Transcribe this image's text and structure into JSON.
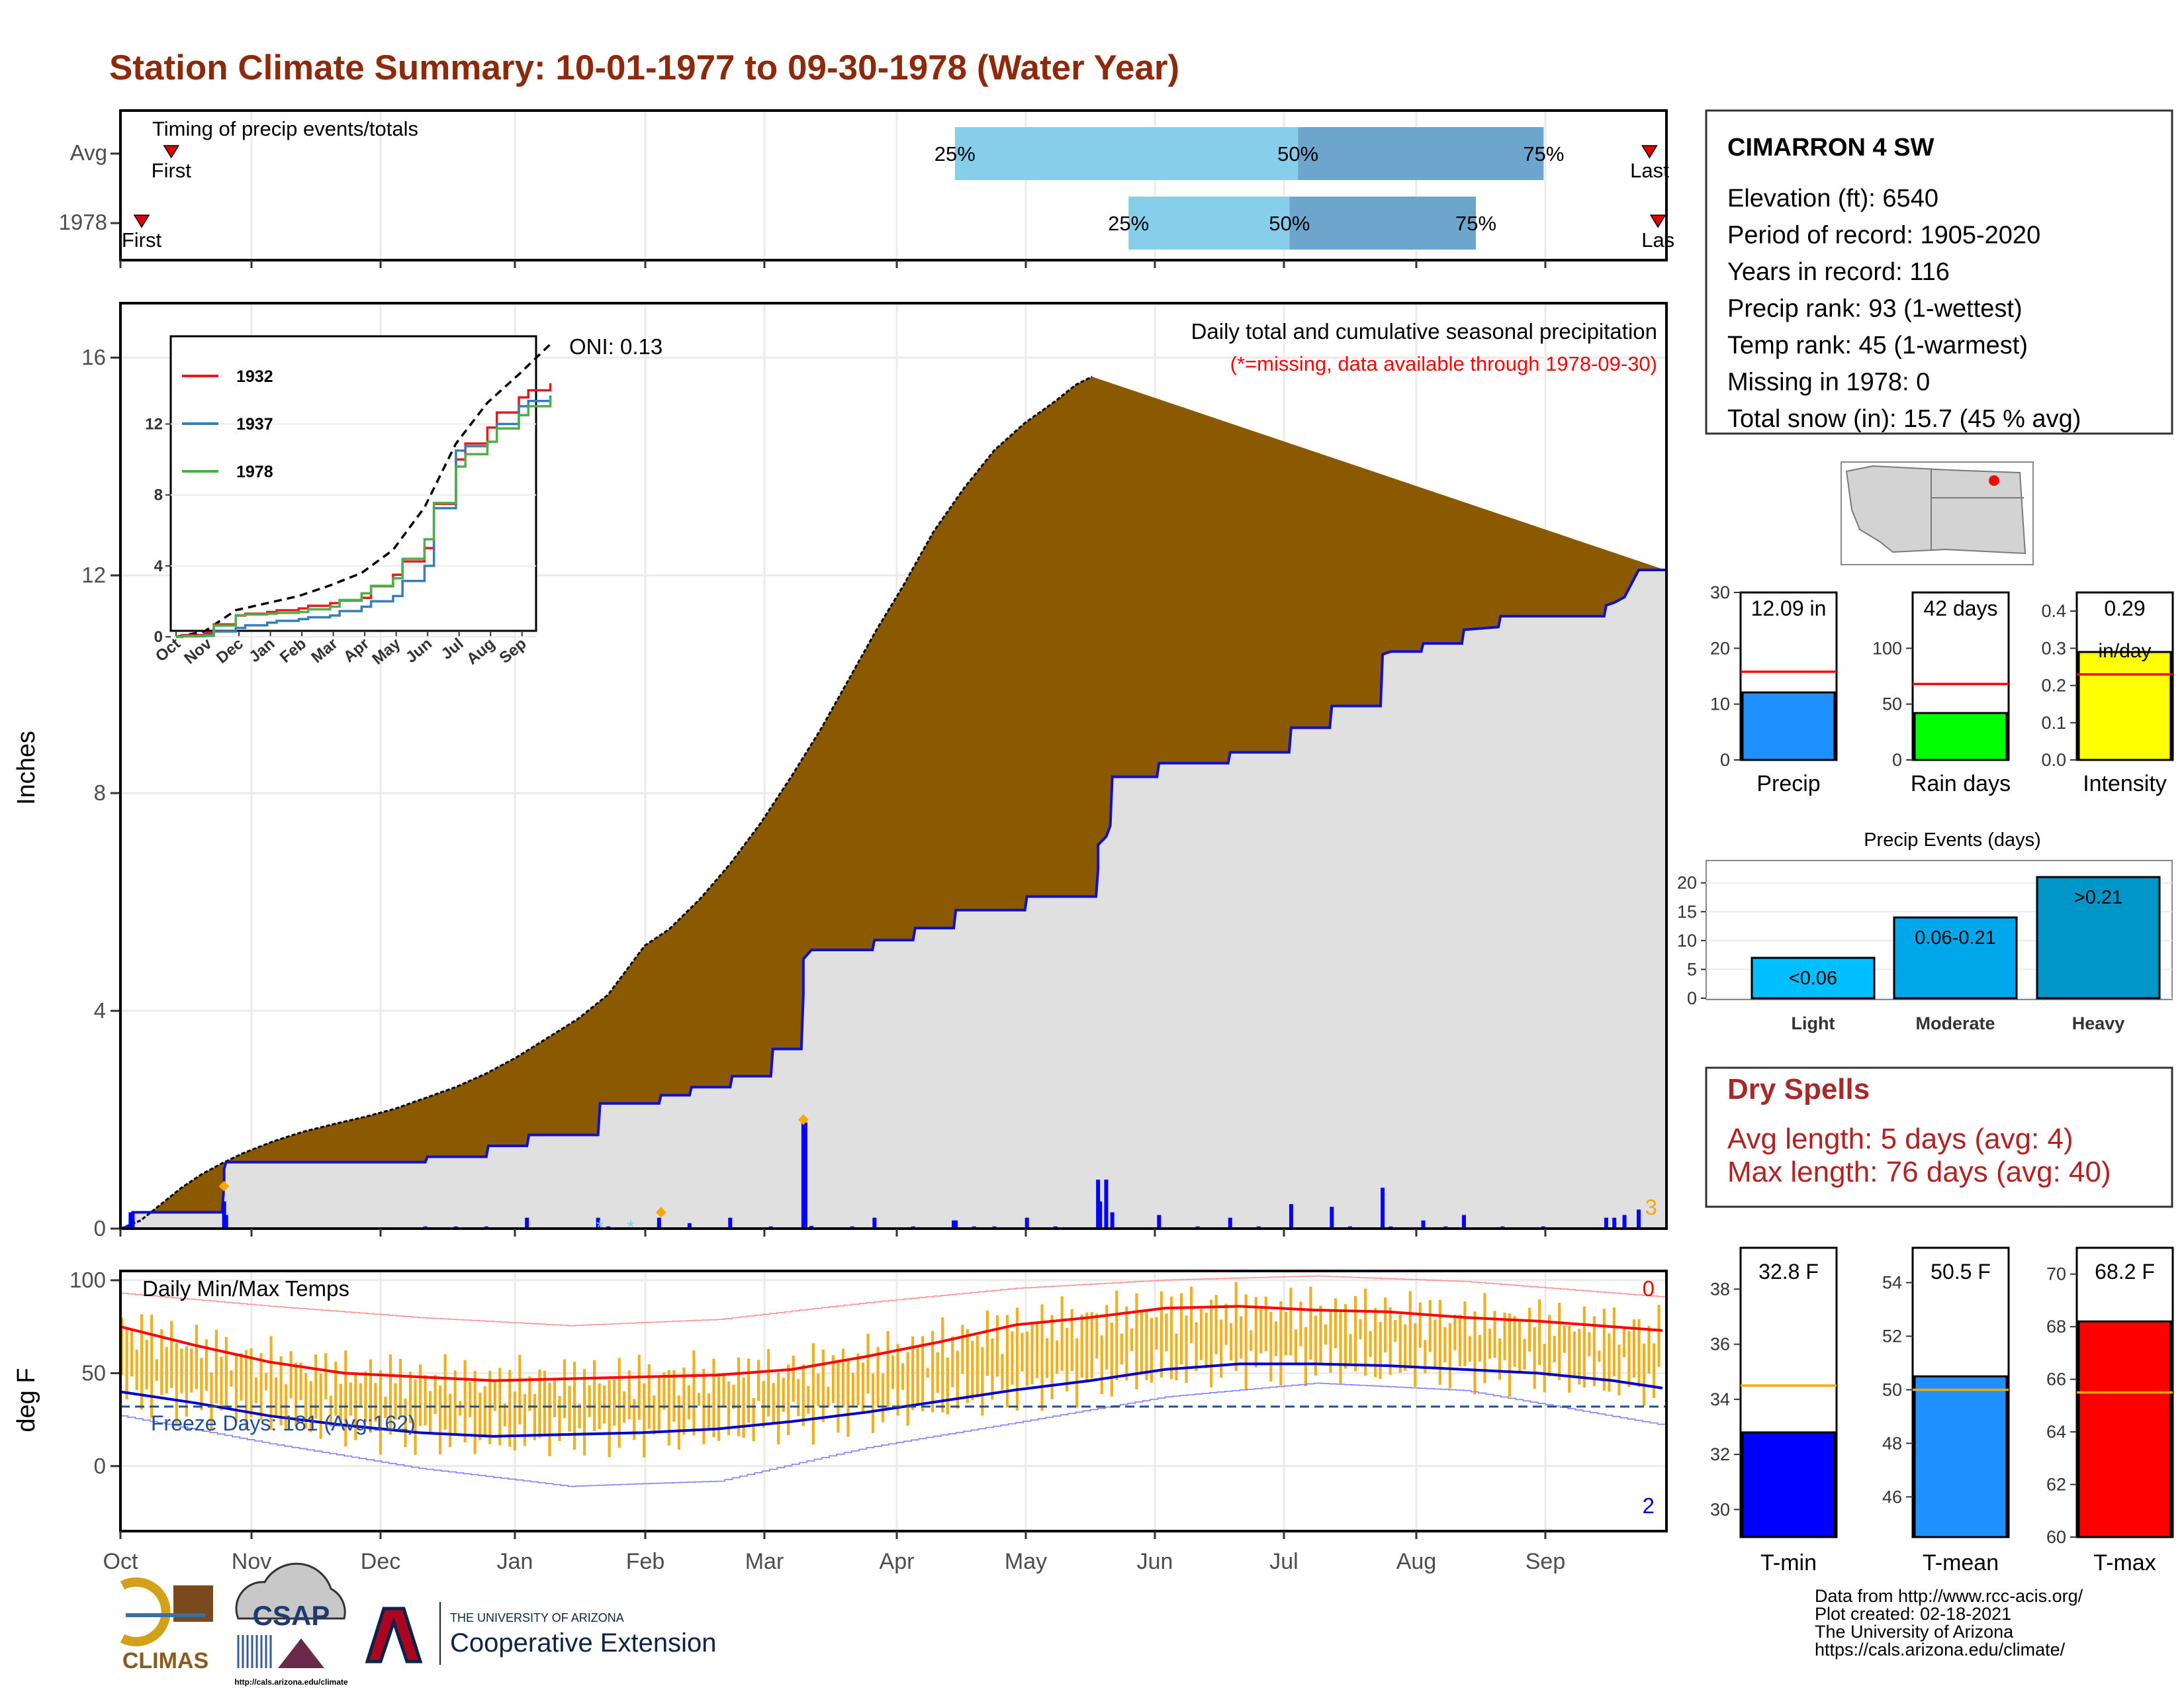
{
  "title": "Station Climate Summary: 10-01-1977 to 09-30-1978 (Water Year)",
  "months": [
    "Oct",
    "Nov",
    "Dec",
    "Jan",
    "Feb",
    "Mar",
    "Apr",
    "May",
    "Jun",
    "Jul",
    "Aug",
    "Sep"
  ],
  "timing": {
    "label": "Timing of precip events/totals",
    "rows": [
      {
        "name": "Avg",
        "first_day": 12,
        "q25": 197,
        "q50": 278,
        "q75": 336,
        "last_day": 361,
        "first_label": "First",
        "last_label": "Last"
      },
      {
        "name": "1978",
        "first_day": 5,
        "q25": 238,
        "q50": 276,
        "q75": 320,
        "last_day": 363,
        "first_label": "First",
        "last_label": "Las"
      }
    ],
    "pct_labels": [
      "25%",
      "50%",
      "75%"
    ]
  },
  "precip": {
    "ylabel": "Inches",
    "yticks": [
      0,
      4,
      8,
      12,
      16
    ],
    "ylim": [
      0,
      17
    ],
    "title": "Daily total and cumulative seasonal precipitation",
    "note": "(*=missing, data available through 1978-09-30)",
    "oni": "ONI: 0.13",
    "corner_count": "3",
    "avg_cumulative": [
      [
        0,
        0
      ],
      [
        10,
        0.15
      ],
      [
        20,
        0.45
      ],
      [
        30,
        0.75
      ],
      [
        40,
        1.0
      ],
      [
        50,
        1.2
      ],
      [
        60,
        1.38
      ],
      [
        75,
        1.6
      ],
      [
        90,
        1.78
      ],
      [
        105,
        1.92
      ],
      [
        120,
        2.05
      ],
      [
        135,
        2.2
      ],
      [
        150,
        2.4
      ],
      [
        165,
        2.6
      ],
      [
        180,
        2.85
      ],
      [
        195,
        3.15
      ],
      [
        210,
        3.5
      ],
      [
        225,
        3.85
      ],
      [
        240,
        4.3
      ],
      [
        250,
        4.8
      ],
      [
        258,
        5.2
      ],
      [
        270,
        5.5
      ],
      [
        285,
        6.05
      ],
      [
        300,
        6.7
      ],
      [
        315,
        7.45
      ],
      [
        330,
        8.3
      ],
      [
        345,
        9.2
      ],
      [
        360,
        10.2
      ],
      [
        372,
        11.0
      ],
      [
        385,
        11.8
      ],
      [
        400,
        12.8
      ],
      [
        415,
        13.6
      ],
      [
        430,
        14.3
      ],
      [
        445,
        14.8
      ],
      [
        460,
        15.2
      ],
      [
        470,
        15.5
      ],
      [
        478,
        15.65
      ]
    ],
    "season_cumulative": [
      [
        0,
        0
      ],
      [
        5,
        0.05
      ],
      [
        6,
        0.3
      ],
      [
        50,
        0.3
      ],
      [
        51,
        0.8
      ],
      [
        51,
        1.1
      ],
      [
        52,
        1.22
      ],
      [
        150,
        1.22
      ],
      [
        151,
        1.32
      ],
      [
        180,
        1.32
      ],
      [
        181,
        1.52
      ],
      [
        200,
        1.52
      ],
      [
        201,
        1.72
      ],
      [
        235,
        1.72
      ],
      [
        236,
        2.3
      ],
      [
        265,
        2.3
      ],
      [
        266,
        2.45
      ],
      [
        280,
        2.45
      ],
      [
        281,
        2.6
      ],
      [
        300,
        2.6
      ],
      [
        301,
        2.8
      ],
      [
        320,
        2.8
      ],
      [
        321,
        3.3
      ],
      [
        335,
        3.3
      ],
      [
        336,
        4.3
      ],
      [
        336,
        4.95
      ],
      [
        340,
        5.12
      ],
      [
        370,
        5.12
      ],
      [
        371,
        5.3
      ],
      [
        390,
        5.3
      ],
      [
        391,
        5.52
      ],
      [
        410,
        5.52
      ],
      [
        411,
        5.85
      ],
      [
        445,
        5.85
      ],
      [
        446,
        6.1
      ],
      [
        480,
        6.1
      ],
      [
        481,
        6.6
      ],
      [
        481,
        7.05
      ],
      [
        485,
        7.2
      ],
      [
        487,
        7.4
      ],
      [
        488,
        8.3
      ],
      [
        510,
        8.3
      ],
      [
        511,
        8.55
      ],
      [
        545,
        8.55
      ],
      [
        546,
        8.75
      ],
      [
        575,
        8.75
      ],
      [
        576,
        9.2
      ],
      [
        595,
        9.2
      ],
      [
        596,
        9.6
      ],
      [
        620,
        9.6
      ],
      [
        621,
        10.55
      ],
      [
        625,
        10.6
      ],
      [
        640,
        10.6
      ],
      [
        641,
        10.75
      ],
      [
        660,
        10.75
      ],
      [
        661,
        11.0
      ],
      [
        678,
        11.05
      ],
      [
        679,
        11.25
      ],
      [
        730,
        11.25
      ],
      [
        731,
        11.45
      ],
      [
        735,
        11.5
      ],
      [
        740,
        11.6
      ],
      [
        747,
        12.1
      ],
      [
        760,
        12.1
      ]
    ],
    "daily_precip": [
      [
        5,
        0.3
      ],
      [
        6,
        0.3
      ],
      [
        51,
        0.5
      ],
      [
        52,
        0.25
      ],
      [
        150,
        0.04
      ],
      [
        165,
        0.04
      ],
      [
        180,
        0.04
      ],
      [
        200,
        0.2
      ],
      [
        235,
        0.2
      ],
      [
        240,
        0.04
      ],
      [
        265,
        0.2
      ],
      [
        280,
        0.1
      ],
      [
        300,
        0.2
      ],
      [
        320,
        0.04
      ],
      [
        336,
        1.95
      ],
      [
        337,
        1.95
      ],
      [
        340,
        0.05
      ],
      [
        360,
        0.04
      ],
      [
        371,
        0.2
      ],
      [
        390,
        0.04
      ],
      [
        410,
        0.15
      ],
      [
        411,
        0.15
      ],
      [
        420,
        0.04
      ],
      [
        430,
        0.04
      ],
      [
        446,
        0.2
      ],
      [
        460,
        0.04
      ],
      [
        481,
        0.9
      ],
      [
        482,
        0.5
      ],
      [
        485,
        0.9
      ],
      [
        488,
        0.3
      ],
      [
        511,
        0.25
      ],
      [
        530,
        0.04
      ],
      [
        546,
        0.2
      ],
      [
        560,
        0.04
      ],
      [
        576,
        0.45
      ],
      [
        596,
        0.4
      ],
      [
        605,
        0.04
      ],
      [
        621,
        0.75
      ],
      [
        625,
        0.04
      ],
      [
        641,
        0.15
      ],
      [
        652,
        0.04
      ],
      [
        661,
        0.25
      ],
      [
        680,
        0.04
      ],
      [
        700,
        0.04
      ],
      [
        731,
        0.2
      ],
      [
        735,
        0.2
      ],
      [
        740,
        0.25
      ],
      [
        747,
        0.35
      ]
    ],
    "snow_marks": [
      [
        236,
        0.04
      ],
      [
        251,
        0.04
      ]
    ],
    "orange_marks": [
      [
        51,
        0.78
      ],
      [
        266,
        0.3
      ],
      [
        336,
        2.0
      ]
    ]
  },
  "inset": {
    "yticks": [
      0,
      4,
      8,
      12
    ],
    "months": [
      "Oct",
      "Nov",
      "Dec",
      "Jan",
      "Feb",
      "Mar",
      "Apr",
      "May",
      "Jun",
      "Jul",
      "Aug",
      "Sep"
    ],
    "series": [
      {
        "name": "1932",
        "color": "#e41a1c",
        "values": [
          0.2,
          1.2,
          1.4,
          1.6,
          1.9,
          2.2,
          3.5,
          5.0,
          10.0,
          11.8,
          13.5,
          14.3
        ]
      },
      {
        "name": "1937",
        "color": "#377eb8",
        "values": [
          0.1,
          0.5,
          0.8,
          1.0,
          1.2,
          1.7,
          2.3,
          4.0,
          10.5,
          11.0,
          13.0,
          13.6
        ]
      },
      {
        "name": "1978",
        "color": "#4daf4a",
        "values": [
          0.05,
          1.22,
          1.3,
          1.4,
          1.7,
          2.45,
          3.3,
          5.5,
          9.6,
          11.0,
          12.5,
          13.5
        ]
      }
    ],
    "avg_values": [
      0.3,
      1.5,
      1.9,
      2.3,
      2.9,
      3.6,
      4.9,
      7.3,
      10.9,
      13.2,
      14.8,
      16.5
    ]
  },
  "temps": {
    "label": "Daily Min/Max Temps",
    "ylabel": "deg F",
    "yticks": [
      0,
      50,
      100
    ],
    "ylim": [
      -35,
      105
    ],
    "freeze_label": "Freeze Days: 181 (Avg:162)",
    "freeze_line": 32,
    "count_top": "0",
    "count_bottom": "2",
    "avg_max": [
      [
        0,
        75
      ],
      [
        30,
        65
      ],
      [
        60,
        56
      ],
      [
        90,
        50
      ],
      [
        120,
        48
      ],
      [
        150,
        46
      ],
      [
        180,
        47
      ],
      [
        210,
        48
      ],
      [
        240,
        49
      ],
      [
        270,
        52
      ],
      [
        300,
        59
      ],
      [
        330,
        67
      ],
      [
        360,
        76
      ],
      [
        390,
        80
      ],
      [
        420,
        85
      ],
      [
        450,
        86
      ],
      [
        480,
        84
      ],
      [
        510,
        83
      ],
      [
        540,
        80
      ],
      [
        570,
        78
      ],
      [
        600,
        75
      ],
      [
        620,
        73
      ]
    ],
    "avg_min": [
      [
        0,
        40
      ],
      [
        30,
        34
      ],
      [
        60,
        27
      ],
      [
        90,
        22
      ],
      [
        120,
        18
      ],
      [
        150,
        16
      ],
      [
        180,
        17
      ],
      [
        210,
        18
      ],
      [
        240,
        20
      ],
      [
        270,
        24
      ],
      [
        300,
        29
      ],
      [
        330,
        35
      ],
      [
        360,
        41
      ],
      [
        390,
        46
      ],
      [
        420,
        52
      ],
      [
        450,
        55
      ],
      [
        480,
        55
      ],
      [
        510,
        54
      ],
      [
        540,
        52
      ],
      [
        570,
        50
      ],
      [
        600,
        46
      ],
      [
        620,
        42
      ]
    ],
    "rec_max": [
      [
        0,
        93
      ],
      [
        60,
        85
      ],
      [
        120,
        78
      ],
      [
        180,
        73
      ],
      [
        240,
        76
      ],
      [
        300,
        85
      ],
      [
        360,
        93
      ],
      [
        420,
        98
      ],
      [
        480,
        101
      ],
      [
        540,
        99
      ],
      [
        620,
        92
      ]
    ],
    "rec_min": [
      [
        0,
        27
      ],
      [
        60,
        10
      ],
      [
        120,
        -5
      ],
      [
        180,
        -16
      ],
      [
        240,
        -14
      ],
      [
        300,
        4
      ],
      [
        360,
        18
      ],
      [
        420,
        33
      ],
      [
        480,
        42
      ],
      [
        540,
        40
      ],
      [
        620,
        24
      ]
    ]
  },
  "station": {
    "name": "CIMARRON 4 SW",
    "lines": [
      "Elevation (ft): 6540",
      "Period of record: 1905-2020",
      "Years in record: 116",
      "Precip rank: 93 (1-wettest)",
      "Temp rank: 45 (1-warmest)",
      "Missing in 1978: 0",
      "Total snow (in): 15.7 (45 % avg)"
    ]
  },
  "mini_bars": [
    {
      "name": "Precip",
      "value": 12.09,
      "label": "12.09 in",
      "avg": 15.8,
      "ymax": 30,
      "yticks": [
        0,
        10,
        20,
        30
      ],
      "color": "#1e90ff"
    },
    {
      "name": "Rain days",
      "value": 42,
      "label": "42 days",
      "avg": 68,
      "ymax": 150,
      "yticks": [
        0,
        50,
        100
      ],
      "color": "#00ff00"
    },
    {
      "name": "Intensity",
      "value": 0.29,
      "label": "0.29",
      "label2": "in/day",
      "avg": 0.23,
      "ymax": 0.45,
      "yticks": [
        0.0,
        0.1,
        0.2,
        0.3,
        0.4
      ],
      "color": "#ffff00"
    }
  ],
  "events": {
    "title": "Precip Events (days)",
    "yticks": [
      0,
      5,
      10,
      15,
      20
    ],
    "bars": [
      {
        "name": "Light",
        "value": 7,
        "label": "<0.06",
        "color": "#00bfff"
      },
      {
        "name": "Moderate",
        "value": 14,
        "label": "0.06-0.21",
        "color": "#00a7ea"
      },
      {
        "name": "Heavy",
        "value": 21,
        "label": ">0.21",
        "color": "#0096c8"
      }
    ]
  },
  "dry_spells": {
    "title": "Dry Spells",
    "avg_line": "Avg length: 5 days (avg: 4)",
    "max_line": "Max length: 76 days (avg: 40)"
  },
  "temp_bars": [
    {
      "name": "T-min",
      "value": 32.8,
      "label": "32.8 F",
      "avg": 34.5,
      "yticks": [
        30,
        32,
        34,
        36,
        38
      ],
      "ymin": 29,
      "ymax": 39.5,
      "color": "#0000ff"
    },
    {
      "name": "T-mean",
      "value": 50.5,
      "label": "50.5 F",
      "avg": 50.0,
      "yticks": [
        46,
        48,
        50,
        52,
        54
      ],
      "ymin": 44.5,
      "ymax": 55.3,
      "color": "#1e90ff"
    },
    {
      "name": "T-max",
      "value": 68.2,
      "label": "68.2 F",
      "avg": 65.5,
      "yticks": [
        60,
        62,
        64,
        66,
        68,
        70
      ],
      "ymin": 60,
      "ymax": 71,
      "color": "#ff0000"
    }
  ],
  "credits": [
    "Data from http://www.rcc-acis.org/",
    "Plot created: 02-18-2021",
    "The University of Arizona",
    "https://cals.arizona.edu/climate/"
  ],
  "logos": {
    "climas": "CLIMAS",
    "csap": "CSAP",
    "csap_url": "http://cals.arizona.edu/climate",
    "ua_small": "THE UNIVERSITY OF ARIZONA",
    "ua_big": "Cooperative Extension"
  }
}
